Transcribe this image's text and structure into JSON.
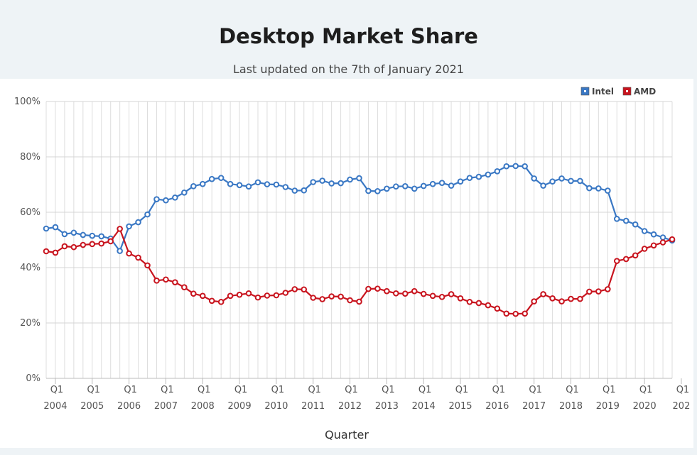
{
  "header": {
    "title": "Desktop Market Share",
    "subtitle": "Last updated on the 7th of January 2021"
  },
  "chart_data": {
    "type": "line",
    "xlabel": "Quarter",
    "ylabel": "",
    "ylim": [
      0,
      100
    ],
    "y_ticks": [
      "0%",
      "20%",
      "40%",
      "60%",
      "80%",
      "100%"
    ],
    "x_tick_labels": [
      {
        "q": "Q1",
        "year": "2004"
      },
      {
        "q": "Q1",
        "year": "2005"
      },
      {
        "q": "Q1",
        "year": "2006"
      },
      {
        "q": "Q1",
        "year": "2007"
      },
      {
        "q": "Q1",
        "year": "2008"
      },
      {
        "q": "Q1",
        "year": "2009"
      },
      {
        "q": "Q1",
        "year": "2010"
      },
      {
        "q": "Q1",
        "year": "2011"
      },
      {
        "q": "Q1",
        "year": "2012"
      },
      {
        "q": "Q1",
        "year": "2013"
      },
      {
        "q": "Q1",
        "year": "2014"
      },
      {
        "q": "Q1",
        "year": "2015"
      },
      {
        "q": "Q1",
        "year": "2016"
      },
      {
        "q": "Q1",
        "year": "2017"
      },
      {
        "q": "Q1",
        "year": "2018"
      },
      {
        "q": "Q1",
        "year": "2019"
      },
      {
        "q": "Q1",
        "year": "2020"
      },
      {
        "q": "Q1",
        "year": "202"
      }
    ],
    "grid": true,
    "legend_position": "top-right",
    "series": [
      {
        "name": "Intel",
        "color": "#3a78c4",
        "values": [
          54.1,
          54.6,
          52.1,
          52.6,
          51.8,
          51.5,
          51.3,
          50.5,
          46.0,
          54.9,
          56.4,
          59.2,
          64.7,
          64.3,
          65.3,
          67.1,
          69.4,
          70.2,
          72.0,
          72.4,
          70.2,
          69.8,
          69.3,
          70.8,
          70.1,
          70.0,
          69.1,
          67.8,
          67.9,
          70.9,
          71.4,
          70.4,
          70.5,
          71.8,
          72.3,
          67.7,
          67.6,
          68.5,
          69.3,
          69.4,
          68.5,
          69.5,
          70.2,
          70.6,
          69.6,
          71.1,
          72.4,
          72.8,
          73.6,
          74.8,
          76.6,
          76.7,
          76.6,
          72.2,
          69.6,
          71.1,
          72.2,
          71.3,
          71.3,
          68.7,
          68.6,
          67.8,
          57.6,
          56.9,
          55.6,
          53.2,
          52.0,
          50.9,
          49.8
        ]
      },
      {
        "name": "AMD",
        "color": "#c8141e",
        "values": [
          45.9,
          45.4,
          47.7,
          47.4,
          48.2,
          48.5,
          48.7,
          49.5,
          54.0,
          45.1,
          43.6,
          40.8,
          35.3,
          35.7,
          34.7,
          32.9,
          30.6,
          29.8,
          28.0,
          27.6,
          29.8,
          30.2,
          30.7,
          29.2,
          29.9,
          30.0,
          30.9,
          32.2,
          32.1,
          29.1,
          28.6,
          29.6,
          29.5,
          28.2,
          27.7,
          32.3,
          32.4,
          31.5,
          30.7,
          30.6,
          31.5,
          30.5,
          29.8,
          29.4,
          30.4,
          28.9,
          27.6,
          27.2,
          26.4,
          25.2,
          23.4,
          23.3,
          23.4,
          27.8,
          30.4,
          28.9,
          27.8,
          28.7,
          28.7,
          31.3,
          31.4,
          32.2,
          42.4,
          43.1,
          44.4,
          46.8,
          48.0,
          49.1,
          50.2
        ]
      }
    ]
  }
}
